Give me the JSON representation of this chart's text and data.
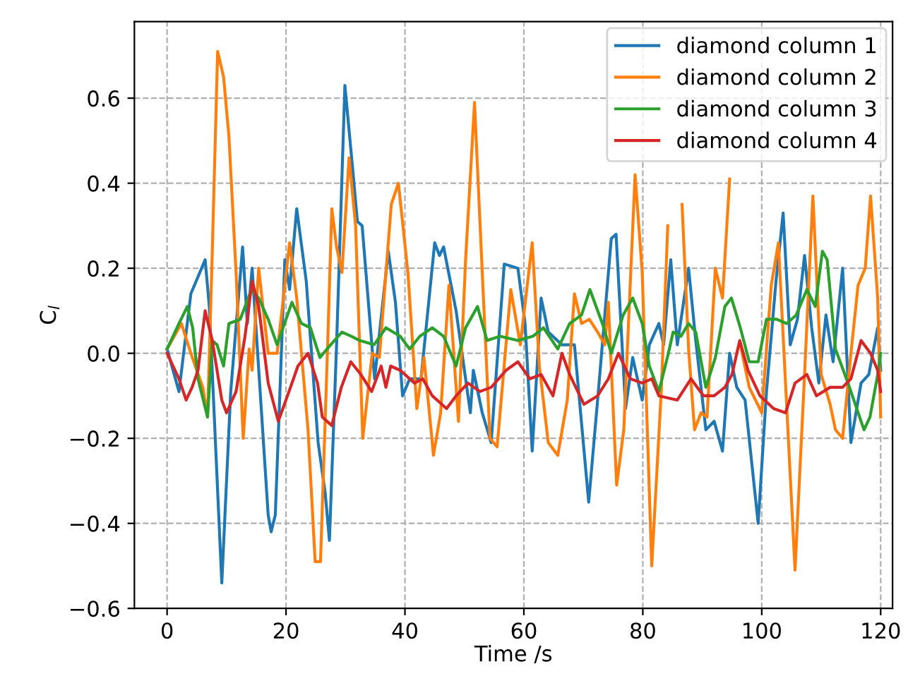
{
  "chart_data": {
    "type": "line",
    "xlabel": "Time /s",
    "ylabel": "C$_{l}$",
    "xlim": [
      -5.5,
      122
    ],
    "ylim": [
      -0.6,
      0.78
    ],
    "xticks": [
      0,
      20,
      40,
      60,
      80,
      100,
      120
    ],
    "yticks": [
      {
        "value": -0.6,
        "label": "−0.6"
      },
      {
        "value": -0.4,
        "label": "−0.4"
      },
      {
        "value": -0.2,
        "label": "−0.2"
      },
      {
        "value": 0,
        "label": "0.0"
      },
      {
        "value": 0.2,
        "label": "0.2"
      },
      {
        "value": 0.4,
        "label": "0.4"
      },
      {
        "value": 0.6,
        "label": "0.6"
      }
    ],
    "grid": true,
    "legend": "top right",
    "line_style": "solid",
    "marker": "none",
    "series": [
      {
        "name": "diamond column 1",
        "color": "#1f77b4",
        "x": [
          0,
          2,
          4,
          6.4,
          7.1,
          9.2,
          10.7,
          12.7,
          13.5,
          14.3,
          17,
          17.5,
          18.2,
          19.8,
          20.6,
          21.8,
          23.4,
          25.4,
          26.6,
          27.3,
          28.5,
          29.9,
          31.3,
          32,
          32.8,
          34.9,
          37.2,
          38.4,
          39.6,
          40.8,
          42.7,
          45,
          45.8,
          46.5,
          48.6,
          51,
          51.5,
          53,
          54.5,
          56.7,
          59,
          60.2,
          61.4,
          62.9,
          64.1,
          66.4,
          68.5,
          70.9,
          72.4,
          74.7,
          75.5,
          77.1,
          78.3,
          79.9,
          81.1,
          82.7,
          83.5,
          84.7,
          85.8,
          87.7,
          88.9,
          90.6,
          92,
          93.4,
          94.6,
          95.8,
          97.2,
          99.4,
          100.8,
          102.4,
          103.6,
          104.8,
          106,
          107.2,
          108.4,
          109.6,
          110.8,
          112,
          113.6,
          115,
          116.7,
          118,
          119.5,
          120
        ],
        "values": [
          0.01,
          -0.09,
          0.14,
          0.22,
          0.11,
          -0.54,
          -0.09,
          0.25,
          0.07,
          0.2,
          -0.38,
          -0.42,
          -0.38,
          0.22,
          0.15,
          0.34,
          0.17,
          -0.21,
          -0.33,
          -0.44,
          0.02,
          0.63,
          0.42,
          0.31,
          0.3,
          -0.06,
          0.24,
          0.12,
          -0.1,
          -0.06,
          -0.06,
          0.26,
          0.23,
          0.25,
          0.1,
          -0.14,
          -0.04,
          -0.14,
          -0.21,
          0.21,
          0.2,
          0.07,
          -0.23,
          0.13,
          0.05,
          0.02,
          0.02,
          -0.35,
          -0.11,
          0.27,
          0.28,
          -0.13,
          -0.01,
          -0.11,
          0.02,
          0.07,
          0.02,
          0.22,
          0.02,
          0.2,
          0.03,
          -0.18,
          -0.16,
          -0.23,
          0.0,
          -0.08,
          -0.11,
          -0.4,
          -0.09,
          0.17,
          0.33,
          0.02,
          0.08,
          0.23,
          0.06,
          -0.07,
          0.09,
          -0.02,
          0.2,
          -0.21,
          -0.07,
          -0.05,
          0.06,
          -0.04
        ]
      },
      {
        "name": "diamond column 2",
        "color": "#ff7f0e",
        "x": [
          0,
          2.4,
          4,
          6,
          6.8,
          7.6,
          8.5,
          9.5,
          10.4,
          11.6,
          12.8,
          13.8,
          14.3,
          15.4,
          17,
          18.5,
          20.6,
          21.8,
          23.7,
          24.9,
          25.8,
          27,
          27.7,
          28.5,
          29.4,
          30.6,
          31.7,
          32.9,
          34.5,
          35.7,
          37.7,
          38.9,
          40.5,
          42,
          43.2,
          44.8,
          46,
          47.4,
          49,
          50.2,
          51.7,
          53,
          54.3,
          55.5,
          57.8,
          59.4,
          61.4,
          62.6,
          64.1,
          65.7,
          67.3,
          68.5,
          69.7,
          71,
          72.4,
          73.6,
          74.2,
          75.6,
          76.8,
          78.7,
          79.9,
          81.5,
          83.1,
          84.2,
          85.4,
          86.6,
          87.7,
          88.7,
          89.8,
          90.8,
          92.2,
          93.4,
          94.6,
          95.5,
          96.4,
          97.9,
          100,
          101.6,
          102.8,
          105.6,
          107.2,
          108.6,
          110,
          111.5,
          112.4,
          113.6,
          115,
          116.2,
          117.4,
          118.3,
          119.5,
          120
        ],
        "values": [
          0.01,
          0.07,
          0.0,
          -0.08,
          -0.15,
          0.24,
          0.71,
          0.65,
          0.51,
          0.19,
          -0.2,
          0.01,
          -0.04,
          0.2,
          0.0,
          0.0,
          0.26,
          0.13,
          -0.18,
          -0.49,
          -0.49,
          0.02,
          0.34,
          0.25,
          0.19,
          0.46,
          0.3,
          -0.2,
          0.0,
          -0.01,
          0.35,
          0.4,
          0.19,
          -0.13,
          -0.01,
          -0.24,
          -0.14,
          0.16,
          -0.16,
          0.22,
          0.59,
          0.19,
          -0.2,
          -0.22,
          0.15,
          0.02,
          0.26,
          -0.03,
          -0.21,
          -0.24,
          -0.11,
          0.14,
          0.07,
          0.08,
          0.05,
          0.02,
          0.12,
          -0.31,
          -0.18,
          0.42,
          0.19,
          -0.5,
          -0.09,
          0.3,
          null,
          0.35,
          0.01,
          -0.18,
          -0.14,
          -0.15,
          0.2,
          0.13,
          0.41,
          null,
          0.02,
          -0.08,
          -0.14,
          0.16,
          0.26,
          -0.51,
          -0.05,
          0.37,
          -0.05,
          -0.12,
          -0.18,
          -0.2,
          0.0,
          0.16,
          0.2,
          0.37,
          0.13,
          -0.15
        ]
      },
      {
        "name": "diamond column 3",
        "color": "#2ca02c",
        "x": [
          0,
          2,
          3.4,
          4.3,
          5.2,
          6.8,
          7.6,
          8.4,
          9.5,
          10.4,
          12.3,
          14.2,
          15.4,
          17,
          18.5,
          21,
          22.6,
          24.1,
          25.7,
          27.5,
          29.4,
          31,
          32.4,
          34.8,
          36.8,
          39.2,
          40.8,
          42.5,
          44.6,
          46.5,
          48.6,
          50.2,
          52.2,
          53.8,
          56,
          59,
          61.5,
          63.3,
          65.7,
          67.7,
          69.7,
          71.1,
          73.2,
          74.7,
          76.7,
          78.3,
          79.9,
          81.1,
          82.7,
          84.3,
          85.1,
          86.4,
          87.7,
          88.9,
          90.6,
          92.2,
          93.8,
          94.9,
          96.4,
          97.9,
          99.4,
          100.8,
          102.5,
          104.2,
          105.8,
          107.6,
          109,
          110.2,
          111,
          112.4,
          114.5,
          117.2,
          118.2,
          119.5,
          120
        ],
        "values": [
          0.01,
          0.07,
          0.11,
          0.06,
          -0.06,
          -0.15,
          0.03,
          0.02,
          -0.03,
          0.07,
          0.08,
          0.15,
          0.13,
          0.08,
          0.02,
          0.12,
          0.07,
          0.06,
          -0.01,
          0.02,
          0.05,
          0.04,
          0.03,
          0.02,
          0.06,
          0.04,
          0.01,
          0.04,
          0.06,
          0.04,
          -0.03,
          0.06,
          0.11,
          0.03,
          0.04,
          0.03,
          0.04,
          0.06,
          0.01,
          0.07,
          0.09,
          0.15,
          0.07,
          0.0,
          0.09,
          0.13,
          0.07,
          -0.03,
          -0.09,
          0.0,
          0.05,
          0.04,
          0.07,
          0.05,
          -0.08,
          -0.01,
          0.11,
          0.13,
          0.06,
          -0.02,
          -0.02,
          0.08,
          0.08,
          0.07,
          0.09,
          0.15,
          0.11,
          0.24,
          0.22,
          0.01,
          -0.07,
          -0.18,
          -0.15,
          -0.05,
          0.0
        ]
      },
      {
        "name": "diamond column 4",
        "color": "#d62728",
        "x": [
          0,
          2,
          3.2,
          4.2,
          5.2,
          6.4,
          7.6,
          9.2,
          10,
          11.6,
          13.1,
          14.3,
          15.4,
          17,
          18.7,
          20.5,
          22,
          23.7,
          25.3,
          26.1,
          27.7,
          29.3,
          30.9,
          32.6,
          34.4,
          36,
          36.8,
          37.6,
          39.2,
          41.6,
          43,
          44.6,
          47,
          48.6,
          50.6,
          52.6,
          54.5,
          57,
          59,
          61,
          62.9,
          64.9,
          66.4,
          67.7,
          70.1,
          72.4,
          74.2,
          75.9,
          77.9,
          79.9,
          81.5,
          82.7,
          85.8,
          88.1,
          90.2,
          92,
          93.8,
          95,
          96.3,
          97.7,
          99.7,
          102,
          104,
          105.6,
          107.6,
          109.2,
          111.5,
          113.6,
          115,
          116.7,
          118.3,
          119.5,
          120
        ],
        "values": [
          0.0,
          -0.06,
          -0.11,
          -0.08,
          -0.04,
          0.1,
          0.03,
          -0.11,
          -0.14,
          -0.09,
          0.04,
          0.17,
          0.11,
          -0.07,
          -0.16,
          -0.09,
          -0.03,
          0.0,
          -0.07,
          -0.15,
          -0.17,
          -0.08,
          -0.02,
          -0.05,
          -0.09,
          -0.03,
          -0.08,
          -0.03,
          -0.04,
          -0.07,
          -0.06,
          -0.1,
          -0.13,
          -0.1,
          -0.07,
          -0.09,
          -0.08,
          -0.04,
          -0.02,
          -0.06,
          -0.05,
          -0.1,
          0.0,
          -0.05,
          -0.12,
          -0.1,
          -0.06,
          0.0,
          -0.06,
          -0.07,
          -0.06,
          -0.1,
          -0.11,
          -0.06,
          -0.1,
          -0.1,
          -0.08,
          -0.05,
          0.03,
          -0.04,
          -0.1,
          -0.13,
          -0.14,
          -0.07,
          -0.05,
          -0.1,
          -0.08,
          -0.08,
          -0.06,
          0.03,
          0.0,
          -0.04,
          -0.09
        ]
      }
    ]
  }
}
